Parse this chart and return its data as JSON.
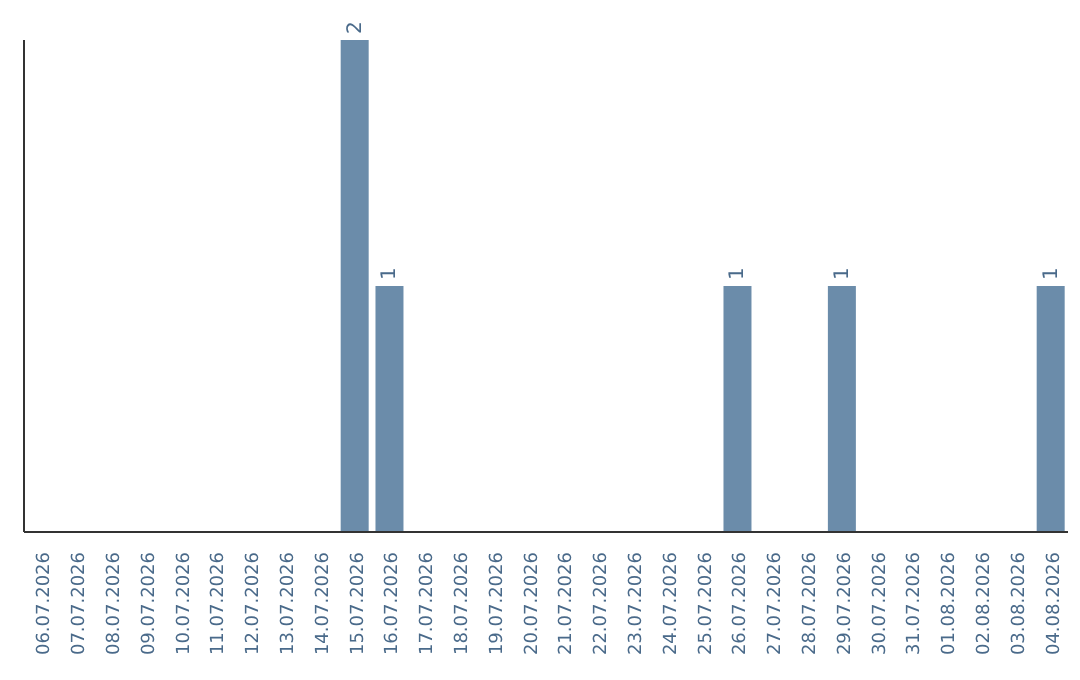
{
  "chart_data": {
    "type": "bar",
    "categories": [
      "06.07.2026",
      "07.07.2026",
      "08.07.2026",
      "09.07.2026",
      "10.07.2026",
      "11.07.2026",
      "12.07.2026",
      "13.07.2026",
      "14.07.2026",
      "15.07.2026",
      "16.07.2026",
      "17.07.2026",
      "18.07.2026",
      "19.07.2026",
      "20.07.2026",
      "21.07.2026",
      "22.07.2026",
      "23.07.2026",
      "24.07.2026",
      "25.07.2026",
      "26.07.2026",
      "27.07.2026",
      "28.07.2026",
      "29.07.2026",
      "30.07.2026",
      "31.07.2026",
      "01.08.2026",
      "02.08.2026",
      "03.08.2026",
      "04.08.2026"
    ],
    "values": [
      0,
      0,
      0,
      0,
      0,
      0,
      0,
      0,
      0,
      2,
      1,
      0,
      0,
      0,
      0,
      0,
      0,
      0,
      0,
      0,
      1,
      0,
      0,
      1,
      0,
      0,
      0,
      0,
      0,
      1
    ],
    "value_labels": [
      null,
      null,
      null,
      null,
      null,
      null,
      null,
      null,
      null,
      "2",
      "1",
      null,
      null,
      null,
      null,
      null,
      null,
      null,
      null,
      null,
      "1",
      null,
      null,
      "1",
      null,
      null,
      null,
      null,
      null,
      "1"
    ],
    "color": "#6b8caa",
    "grid": false,
    "legend": false
  }
}
